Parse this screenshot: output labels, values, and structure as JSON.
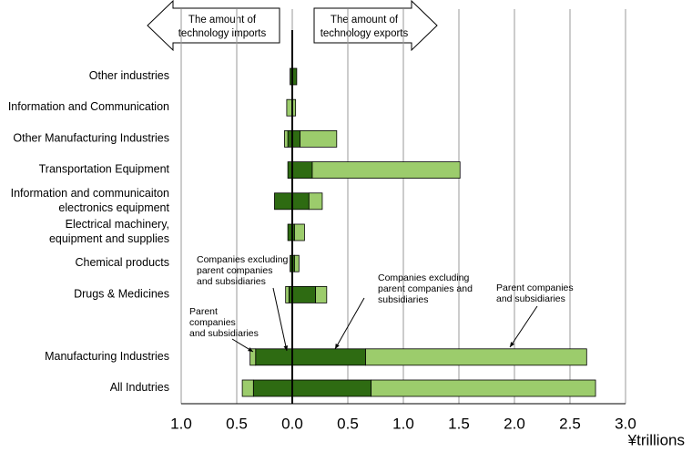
{
  "chart_data": {
    "type": "bar",
    "orientation": "horizontal",
    "stacked": true,
    "categories": [
      "Other industries",
      "Information and Communication",
      "Other Manufacturing Industries",
      "Transportation Equipment",
      "Information and communicaiton\nelectronics equipment",
      "Electrical machinery,\nequipment and supplies",
      "Chemical products",
      "Drugs & Medicines",
      null,
      "Manufacturing Industries",
      "All Indutries"
    ],
    "series": [
      {
        "color": "#2e6b12",
        "values": [
          -0.02,
          0,
          -0.04,
          -0.04,
          -0.16,
          -0.04,
          -0.02,
          -0.03,
          null,
          -0.33,
          -0.35
        ]
      },
      {
        "color": "#9ccc6c",
        "values": [
          0,
          -0.05,
          -0.03,
          0,
          0,
          0,
          0,
          -0.03,
          null,
          -0.05,
          -0.1
        ]
      },
      {
        "color": "#2e6b12",
        "values": [
          0.04,
          0,
          0.07,
          0.18,
          0.15,
          0.02,
          0.02,
          0.21,
          null,
          0.66,
          0.71
        ]
      },
      {
        "color": "#9ccc6c",
        "values": [
          0,
          0.03,
          0.33,
          1.33,
          0.12,
          0.09,
          0.04,
          0.1,
          null,
          1.99,
          2.02
        ]
      }
    ],
    "xlim": [
      -1,
      3
    ],
    "xticks": [
      {
        "value": -1,
        "label": "1.0"
      },
      {
        "value": -0.5,
        "label": "0.5"
      },
      {
        "value": 0,
        "label": "0.0"
      },
      0.5,
      {
        "value": 1,
        "label": "1.0"
      },
      1.5,
      {
        "value": 2,
        "label": "2.0"
      },
      2.5,
      {
        "value": 3,
        "label": "3.0"
      }
    ],
    "x_label": "¥trillions",
    "grid": true,
    "arrows": {
      "left": [
        "The amount of",
        "technology imports"
      ],
      "right": [
        "The amount of",
        "technology exports"
      ]
    },
    "annotations": [
      [
        "Companies excluding",
        "parent companies",
        "and subsidiaries"
      ],
      [
        "Companies excluding",
        "parent companies and",
        "subsidiaries"
      ],
      [
        "Parent companies",
        "and subsidiaries"
      ],
      [
        "Parent",
        "companies",
        "and subsidiaries"
      ]
    ]
  }
}
